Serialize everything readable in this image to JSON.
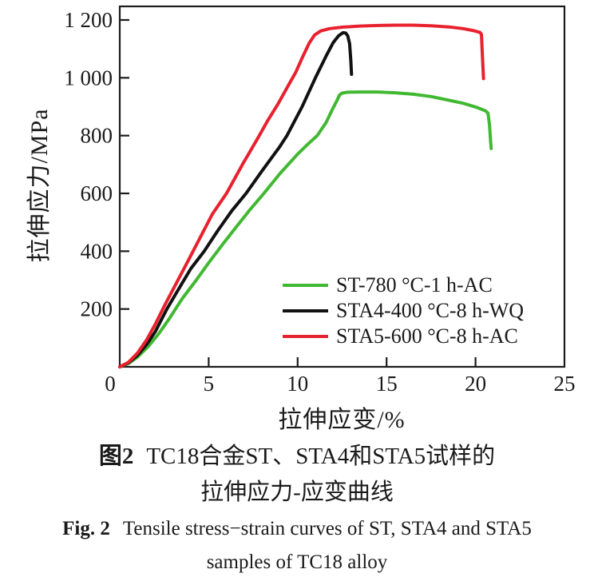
{
  "chart_data": {
    "type": "line",
    "title": "",
    "xlabel": "拉伸应变/%",
    "ylabel": "拉伸应力/MPa",
    "xlim": [
      0,
      25
    ],
    "ylim": [
      0,
      1247
    ],
    "grid": false,
    "legend_position": "inside lower right",
    "x_axis": {
      "tick_mark_values": [
        5,
        10,
        15,
        20
      ],
      "tick_labels": [
        {
          "value": 0,
          "label": "0"
        },
        {
          "value": 5,
          "label": "5"
        },
        {
          "value": 10,
          "label": "10"
        },
        {
          "value": 15,
          "label": "15"
        },
        {
          "value": 20,
          "label": "20"
        },
        {
          "value": 25,
          "label": "25"
        }
      ]
    },
    "y_axis": {
      "tick_mark_values": [
        200,
        400,
        600,
        800,
        1000,
        1200
      ],
      "tick_labels": [
        {
          "value": 200,
          "label": "200"
        },
        {
          "value": 400,
          "label": "400"
        },
        {
          "value": 600,
          "label": "600"
        },
        {
          "value": 800,
          "label": "800"
        },
        {
          "value": 1000,
          "label": "1 000"
        },
        {
          "value": 1200,
          "label": "1 200"
        }
      ]
    },
    "series": [
      {
        "name": "ST-780 °C-1 h-AC",
        "color": "#41b832",
        "points": [
          [
            0,
            0
          ],
          [
            0.5,
            12
          ],
          [
            1.0,
            34
          ],
          [
            1.6,
            70
          ],
          [
            2.2,
            115
          ],
          [
            2.8,
            168
          ],
          [
            3.5,
            235
          ],
          [
            4.3,
            300
          ],
          [
            5.0,
            360
          ],
          [
            5.8,
            425
          ],
          [
            6.5,
            480
          ],
          [
            7.3,
            542
          ],
          [
            8.1,
            600
          ],
          [
            9.0,
            668
          ],
          [
            10.0,
            736
          ],
          [
            10.6,
            772
          ],
          [
            11.1,
            800
          ],
          [
            11.6,
            845
          ],
          [
            11.95,
            890
          ],
          [
            12.2,
            920
          ],
          [
            12.35,
            940
          ],
          [
            12.5,
            947
          ],
          [
            12.8,
            950
          ],
          [
            13.5,
            951
          ],
          [
            14.5,
            951
          ],
          [
            15.5,
            948
          ],
          [
            16.5,
            943
          ],
          [
            17.5,
            935
          ],
          [
            18.3,
            925
          ],
          [
            19.3,
            912
          ],
          [
            20.1,
            897
          ],
          [
            20.55,
            886
          ],
          [
            20.7,
            878
          ],
          [
            20.78,
            840
          ],
          [
            20.85,
            780
          ],
          [
            20.88,
            755
          ]
        ]
      },
      {
        "name": "STA4-400 °C-8 h-WQ",
        "color": "#111111",
        "points": [
          [
            0,
            0
          ],
          [
            0.5,
            14
          ],
          [
            1.0,
            40
          ],
          [
            1.5,
            76
          ],
          [
            2.0,
            122
          ],
          [
            2.65,
            200
          ],
          [
            3.3,
            268
          ],
          [
            4.0,
            340
          ],
          [
            4.75,
            400
          ],
          [
            5.5,
            470
          ],
          [
            6.3,
            540
          ],
          [
            7.1,
            600
          ],
          [
            8.0,
            678
          ],
          [
            9.0,
            762
          ],
          [
            9.4,
            800
          ],
          [
            10.25,
            900
          ],
          [
            11.0,
            1000
          ],
          [
            11.6,
            1075
          ],
          [
            12.0,
            1122
          ],
          [
            12.3,
            1145
          ],
          [
            12.55,
            1156
          ],
          [
            12.7,
            1155
          ],
          [
            12.82,
            1145
          ],
          [
            12.92,
            1118
          ],
          [
            12.99,
            1060
          ],
          [
            13.03,
            1012
          ]
        ]
      },
      {
        "name": "STA5-600 °C-8 h-AC",
        "color": "#e8212e",
        "points": [
          [
            0,
            0
          ],
          [
            0.5,
            16
          ],
          [
            1.0,
            48
          ],
          [
            1.5,
            92
          ],
          [
            2.0,
            148
          ],
          [
            2.5,
            210
          ],
          [
            3.1,
            280
          ],
          [
            3.8,
            362
          ],
          [
            4.5,
            445
          ],
          [
            5.2,
            528
          ],
          [
            6.0,
            600
          ],
          [
            6.9,
            700
          ],
          [
            7.75,
            790
          ],
          [
            8.3,
            850
          ],
          [
            8.9,
            910
          ],
          [
            9.4,
            965
          ],
          [
            9.9,
            1020
          ],
          [
            10.3,
            1075
          ],
          [
            10.65,
            1120
          ],
          [
            10.95,
            1148
          ],
          [
            11.3,
            1162
          ],
          [
            11.8,
            1170
          ],
          [
            12.5,
            1175
          ],
          [
            13.5,
            1179
          ],
          [
            14.5,
            1181
          ],
          [
            15.5,
            1182
          ],
          [
            16.5,
            1182
          ],
          [
            17.5,
            1180
          ],
          [
            18.5,
            1176
          ],
          [
            19.3,
            1170
          ],
          [
            19.9,
            1163
          ],
          [
            20.25,
            1157
          ],
          [
            20.33,
            1150
          ],
          [
            20.4,
            1060
          ],
          [
            20.45,
            997
          ]
        ]
      }
    ]
  },
  "captions": {
    "zh": {
      "label": "图2",
      "line1": "TC18合金ST、STA4和STA5试样的",
      "line2": "拉伸应力-应变曲线"
    },
    "en": {
      "label": "Fig. 2",
      "line1": "Tensile stress−strain curves of ST, STA4 and STA5",
      "line2": "samples of TC18 alloy"
    }
  }
}
